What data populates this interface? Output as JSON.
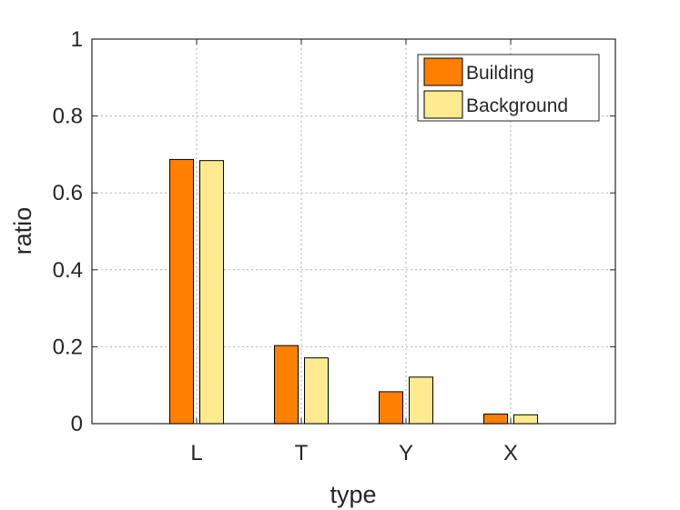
{
  "chart_data": {
    "type": "bar",
    "categories": [
      "L",
      "T",
      "Y",
      "X"
    ],
    "series": [
      {
        "name": "Building",
        "values": [
          0.687,
          0.203,
          0.083,
          0.025
        ],
        "color": "#ff7f00"
      },
      {
        "name": "Background",
        "values": [
          0.684,
          0.171,
          0.121,
          0.023
        ],
        "color": "#ffea8f"
      }
    ],
    "xlabel": "type",
    "ylabel": "ratio",
    "ylim": [
      0,
      1
    ],
    "yticks": [
      "0",
      "0.2",
      "0.4",
      "0.6",
      "0.8",
      "1"
    ],
    "grid": true,
    "legend_position": "top-right"
  }
}
